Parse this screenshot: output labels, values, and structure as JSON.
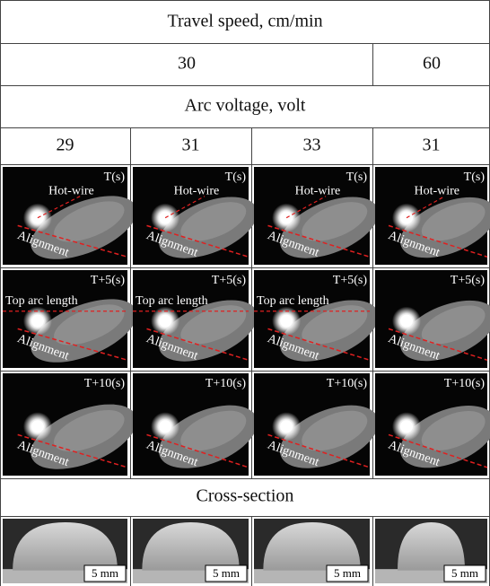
{
  "table": {
    "header": "Travel speed, cm/min",
    "speeds": [
      "30",
      "60"
    ],
    "voltage_header": "Arc voltage, volt",
    "voltages": [
      "29",
      "31",
      "33",
      "31"
    ],
    "image_rows": [
      {
        "cells": [
          {
            "time": "T(s)",
            "labels": [
              "Hot-wire",
              "Alignment"
            ]
          },
          {
            "time": "T(s)",
            "labels": [
              "Hot-wire",
              "Alignment"
            ]
          },
          {
            "time": "T(s)",
            "labels": [
              "Hot-wire",
              "Alignment"
            ]
          },
          {
            "time": "T(s)",
            "labels": [
              "Hot-wire",
              "Alignment"
            ]
          }
        ]
      },
      {
        "cells": [
          {
            "time": "T+5(s)",
            "labels": [
              "Top arc length",
              "Alignment"
            ]
          },
          {
            "time": "T+5(s)",
            "labels": [
              "Top arc length",
              "Alignment"
            ]
          },
          {
            "time": "T+5(s)",
            "labels": [
              "Top arc length",
              "Alignment"
            ]
          },
          {
            "time": "T+5(s)",
            "labels": [
              "Alignment"
            ]
          }
        ]
      },
      {
        "cells": [
          {
            "time": "T+10(s)",
            "labels": [
              "Alignment"
            ]
          },
          {
            "time": "T+10(s)",
            "labels": [
              "Alignment"
            ]
          },
          {
            "time": "T+10(s)",
            "labels": [
              "Alignment"
            ]
          },
          {
            "time": "T+10(s)",
            "labels": [
              "Alignment"
            ]
          }
        ]
      }
    ],
    "cross_section_header": "Cross-section",
    "cross_sections": [
      "5 mm",
      "5 mm",
      "5 mm",
      "5 mm"
    ]
  }
}
